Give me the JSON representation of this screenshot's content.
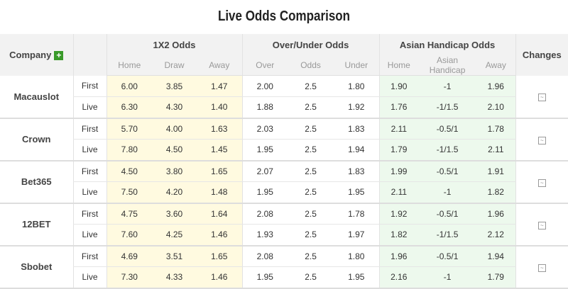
{
  "title": "Live Odds Comparison",
  "header": {
    "company": "Company",
    "group_1x2": "1X2 Odds",
    "group_ou": "Over/Under Odds",
    "group_ah": "Asian Handicap Odds",
    "changes": "Changes",
    "sub": [
      "Home",
      "Draw",
      "Away",
      "Over",
      "Odds",
      "Under",
      "Home",
      "Asian Handicap",
      "Away"
    ]
  },
  "icons": {
    "add": "plus-icon",
    "changes": "line-chart-icon"
  },
  "colors": {
    "yellow_bg": "#fffae0",
    "green_bg": "#edf9ed",
    "plus_green": "#3a9a2a"
  },
  "companies": [
    {
      "name": "Macauslot",
      "rows": [
        {
          "type": "First",
          "v": [
            "6.00",
            "3.85",
            "1.47",
            "2.00",
            "2.5",
            "1.80",
            "1.90",
            "-1",
            "1.96"
          ]
        },
        {
          "type": "Live",
          "v": [
            "6.30",
            "4.30",
            "1.40",
            "1.88",
            "2.5",
            "1.92",
            "1.76",
            "-1/1.5",
            "2.10"
          ]
        }
      ]
    },
    {
      "name": "Crown",
      "rows": [
        {
          "type": "First",
          "v": [
            "5.70",
            "4.00",
            "1.63",
            "2.03",
            "2.5",
            "1.83",
            "2.11",
            "-0.5/1",
            "1.78"
          ]
        },
        {
          "type": "Live",
          "v": [
            "7.80",
            "4.50",
            "1.45",
            "1.95",
            "2.5",
            "1.94",
            "1.79",
            "-1/1.5",
            "2.11"
          ]
        }
      ]
    },
    {
      "name": "Bet365",
      "rows": [
        {
          "type": "First",
          "v": [
            "4.50",
            "3.80",
            "1.65",
            "2.07",
            "2.5",
            "1.83",
            "1.99",
            "-0.5/1",
            "1.91"
          ]
        },
        {
          "type": "Live",
          "v": [
            "7.50",
            "4.20",
            "1.48",
            "1.95",
            "2.5",
            "1.95",
            "2.11",
            "-1",
            "1.82"
          ]
        }
      ]
    },
    {
      "name": "12BET",
      "rows": [
        {
          "type": "First",
          "v": [
            "4.75",
            "3.60",
            "1.64",
            "2.08",
            "2.5",
            "1.78",
            "1.92",
            "-0.5/1",
            "1.96"
          ]
        },
        {
          "type": "Live",
          "v": [
            "7.60",
            "4.25",
            "1.46",
            "1.93",
            "2.5",
            "1.97",
            "1.82",
            "-1/1.5",
            "2.12"
          ]
        }
      ]
    },
    {
      "name": "Sbobet",
      "rows": [
        {
          "type": "First",
          "v": [
            "4.69",
            "3.51",
            "1.65",
            "2.08",
            "2.5",
            "1.80",
            "1.96",
            "-0.5/1",
            "1.94"
          ]
        },
        {
          "type": "Live",
          "v": [
            "7.30",
            "4.33",
            "1.46",
            "1.95",
            "2.5",
            "1.95",
            "2.16",
            "-1",
            "1.79"
          ]
        }
      ]
    }
  ]
}
